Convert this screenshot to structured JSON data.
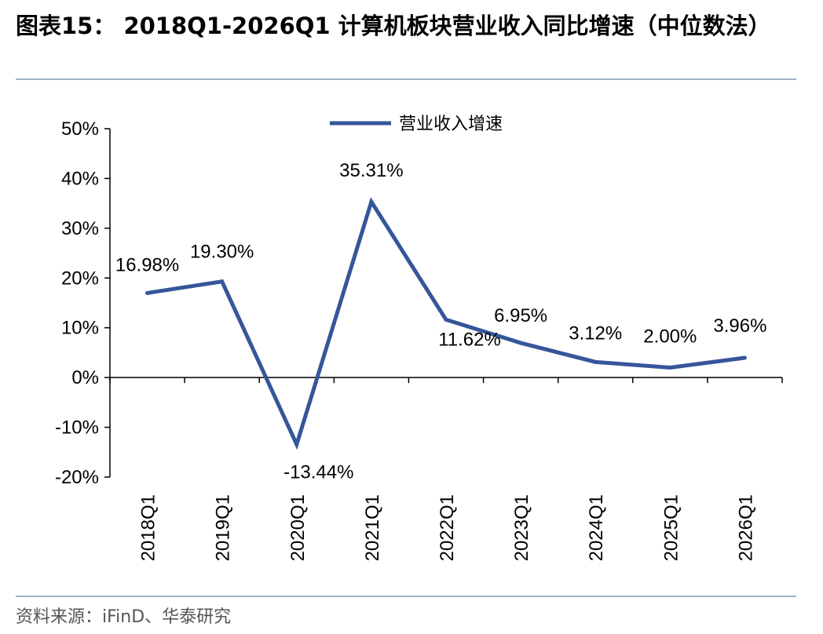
{
  "header": {
    "title": "图表15：  2018Q1-2026Q1 计算机板块营业收入同比增速（中位数法）"
  },
  "footer": {
    "source": "资料来源：iFinD、华泰研究"
  },
  "colors": {
    "line": "#35569a",
    "axis": "#000000",
    "rule": "#9eb0c7"
  },
  "chart_data": {
    "type": "line",
    "categories": [
      "2018Q1",
      "2019Q1",
      "2020Q1",
      "2021Q1",
      "2022Q1",
      "2023Q1",
      "2024Q1",
      "2025Q1",
      "2026Q1"
    ],
    "series": [
      {
        "name": "营业收入增速",
        "values": [
          16.98,
          19.3,
          -13.44,
          35.31,
          11.62,
          6.95,
          3.12,
          2.0,
          3.96
        ],
        "labels": [
          "16.98%",
          "19.30%",
          "-13.44%",
          "35.31%",
          "11.62%",
          "6.95%",
          "3.12%",
          "2.00%",
          "3.96%"
        ]
      }
    ],
    "y_ticks": [
      50,
      40,
      30,
      20,
      10,
      0,
      -10,
      -20
    ],
    "y_tick_labels": [
      "50%",
      "40%",
      "30%",
      "20%",
      "10%",
      "0%",
      "-10%",
      "-20%"
    ],
    "ylim": [
      -20,
      50
    ],
    "grid": false,
    "legend_position": "top-center",
    "x_label_rotation": "vertical"
  }
}
